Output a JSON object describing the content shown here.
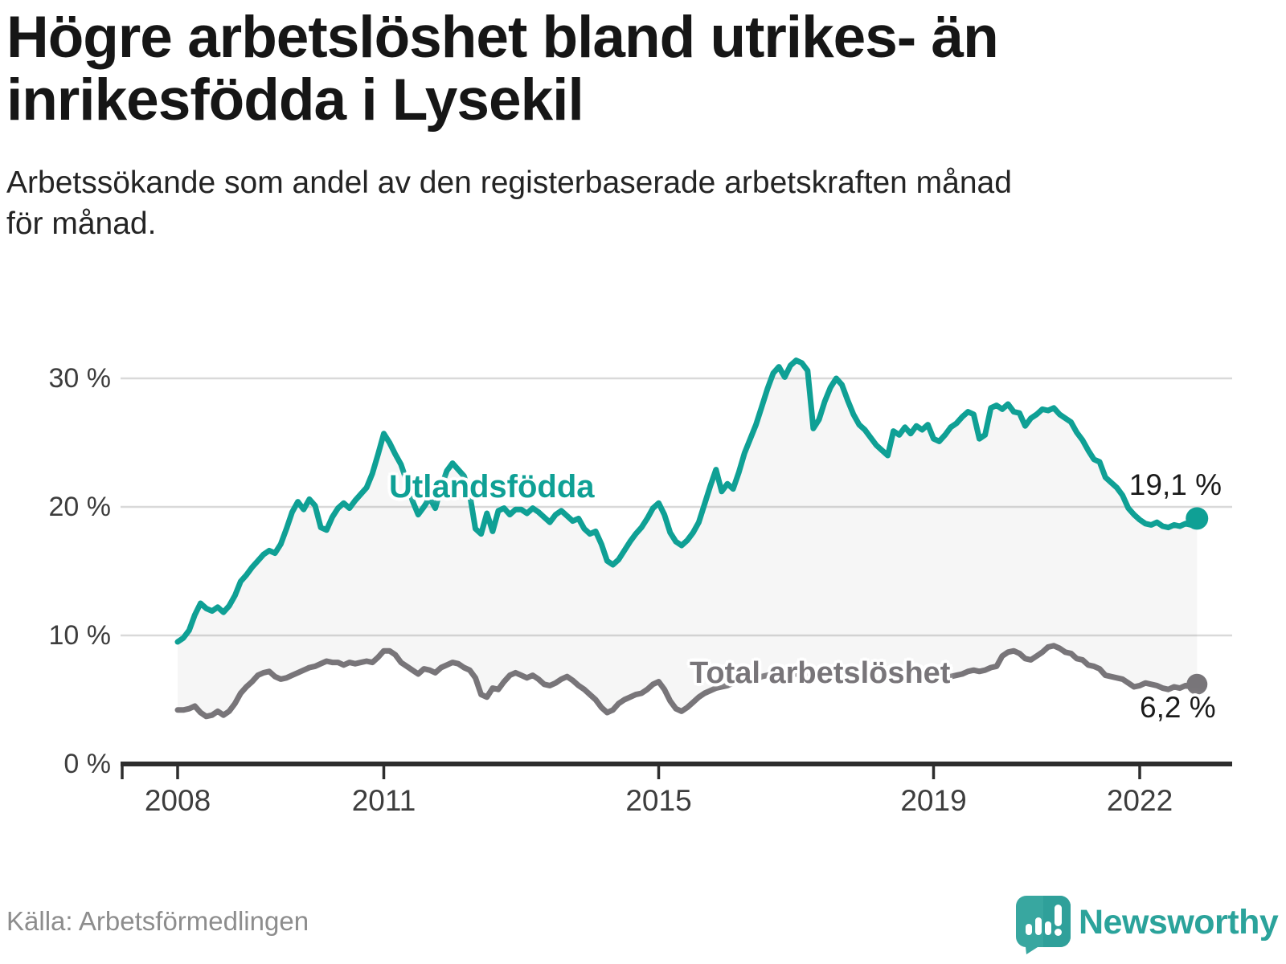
{
  "header": {
    "title_line1": "Högre arbetslöshet bland utrikes- än",
    "title_line2": "inrikesfödda i Lysekil",
    "subtitle_line1": "Arbetssökande som andel av den registerbaserade arbetskraften månad",
    "subtitle_line2": "för månad."
  },
  "chart_data": {
    "type": "line",
    "title": "Högre arbetslöshet bland utrikes- än inrikesfödda i Lysekil",
    "subtitle": "Arbetssökande som andel av den registerbaserade arbetskraften månad för månad.",
    "frequency": "monthly",
    "x_start": "2008-01",
    "x_end": "2022-11",
    "grid": "horizontal",
    "area_fill_between_series": true,
    "ylim": [
      0,
      33
    ],
    "y_ticks": [
      {
        "value": 30,
        "label": "30 %"
      },
      {
        "value": 20,
        "label": "20 %"
      },
      {
        "value": 10,
        "label": "10 %"
      },
      {
        "value": 0,
        "label": "0 %"
      }
    ],
    "x_ticks": [
      {
        "year": 2008,
        "label": "2008"
      },
      {
        "year": 2011,
        "label": "2011"
      },
      {
        "year": 2015,
        "label": "2015"
      },
      {
        "year": 2019,
        "label": "2019"
      },
      {
        "year": 2022,
        "label": "2022"
      }
    ],
    "series": [
      {
        "name": "Utlandsfödda",
        "color": "#0FA095",
        "end_value": 19.1,
        "end_label": "19,1 %",
        "values": [
          9.5,
          9.8,
          10.4,
          11.6,
          12.5,
          12.1,
          11.9,
          12.2,
          11.8,
          12.3,
          13.1,
          14.2,
          14.7,
          15.3,
          15.8,
          16.3,
          16.6,
          16.4,
          17.1,
          18.3,
          19.6,
          20.4,
          19.8,
          20.6,
          20.1,
          18.4,
          18.2,
          19.2,
          19.9,
          20.3,
          19.9,
          20.5,
          21.0,
          21.5,
          22.6,
          24.1,
          25.7,
          25.0,
          24.1,
          23.3,
          22.0,
          20.5,
          19.4,
          20.0,
          20.7,
          19.9,
          21.5,
          22.8,
          23.4,
          22.9,
          22.4,
          21.0,
          18.3,
          17.9,
          19.5,
          18.1,
          19.7,
          19.9,
          19.4,
          19.8,
          19.8,
          19.5,
          19.9,
          19.6,
          19.2,
          18.8,
          19.4,
          19.7,
          19.3,
          18.9,
          19.1,
          18.3,
          17.9,
          18.1,
          17.1,
          15.8,
          15.5,
          15.9,
          16.6,
          17.3,
          17.9,
          18.4,
          19.1,
          19.9,
          20.3,
          19.4,
          18.0,
          17.3,
          17.0,
          17.4,
          18.0,
          18.8,
          20.2,
          21.6,
          22.9,
          21.2,
          21.8,
          21.4,
          22.7,
          24.2,
          25.3,
          26.4,
          27.8,
          29.2,
          30.4,
          30.9,
          30.1,
          31.0,
          31.4,
          31.2,
          30.6,
          26.1,
          26.8,
          28.2,
          29.3,
          30.0,
          29.5,
          28.3,
          27.2,
          26.4,
          26.0,
          25.4,
          24.8,
          24.4,
          24.0,
          25.9,
          25.6,
          26.2,
          25.7,
          26.3,
          26.0,
          26.4,
          25.3,
          25.1,
          25.6,
          26.2,
          26.5,
          27.0,
          27.4,
          27.2,
          25.3,
          25.6,
          27.7,
          27.9,
          27.6,
          28.0,
          27.4,
          27.3,
          26.3,
          26.9,
          27.2,
          27.6,
          27.5,
          27.7,
          27.2,
          26.9,
          26.6,
          25.8,
          25.2,
          24.4,
          23.7,
          23.5,
          22.3,
          21.9,
          21.5,
          20.9,
          19.9,
          19.4,
          19.0,
          18.7,
          18.6,
          18.8,
          18.5,
          18.4,
          18.6,
          18.5,
          18.7,
          18.6,
          19.1
        ]
      },
      {
        "name": "Total arbetslöshet",
        "color": "#787579",
        "end_value": 6.2,
        "end_label": "6,2 %",
        "values": [
          4.2,
          4.2,
          4.3,
          4.5,
          4.0,
          3.7,
          3.8,
          4.1,
          3.8,
          4.1,
          4.7,
          5.5,
          6.0,
          6.4,
          6.9,
          7.1,
          7.2,
          6.8,
          6.6,
          6.7,
          6.9,
          7.1,
          7.3,
          7.5,
          7.6,
          7.8,
          8.0,
          7.9,
          7.9,
          7.7,
          7.9,
          7.8,
          7.9,
          8.0,
          7.9,
          8.3,
          8.8,
          8.8,
          8.5,
          7.9,
          7.6,
          7.3,
          7.0,
          7.4,
          7.3,
          7.1,
          7.5,
          7.7,
          7.9,
          7.8,
          7.5,
          7.3,
          6.7,
          5.4,
          5.2,
          5.9,
          5.8,
          6.4,
          6.9,
          7.1,
          6.9,
          6.7,
          6.9,
          6.6,
          6.2,
          6.1,
          6.3,
          6.6,
          6.8,
          6.5,
          6.1,
          5.8,
          5.4,
          5.0,
          4.4,
          4.0,
          4.2,
          4.7,
          5.0,
          5.2,
          5.4,
          5.5,
          5.8,
          6.2,
          6.4,
          5.8,
          4.9,
          4.3,
          4.1,
          4.4,
          4.8,
          5.2,
          5.5,
          5.7,
          5.9,
          6.0,
          6.1,
          6.3,
          6.5,
          6.6,
          6.5,
          6.6,
          6.8,
          6.9,
          7.0,
          6.9,
          6.9,
          7.0,
          7.0,
          7.1,
          6.9,
          6.6,
          6.7,
          6.9,
          7.1,
          7.2,
          7.0,
          6.9,
          6.8,
          6.7,
          6.4,
          6.6,
          6.5,
          6.7,
          6.5,
          6.6,
          6.7,
          6.5,
          6.6,
          6.7,
          6.6,
          6.8,
          6.6,
          6.5,
          6.6,
          6.8,
          6.9,
          7.0,
          7.2,
          7.3,
          7.2,
          7.3,
          7.5,
          7.6,
          8.4,
          8.7,
          8.8,
          8.6,
          8.2,
          8.1,
          8.4,
          8.7,
          9.1,
          9.2,
          9.0,
          8.7,
          8.6,
          8.2,
          8.1,
          7.7,
          7.6,
          7.4,
          6.9,
          6.8,
          6.7,
          6.6,
          6.3,
          6.0,
          6.1,
          6.3,
          6.2,
          6.1,
          5.9,
          5.8,
          6.0,
          5.9,
          6.1,
          6.0,
          6.2
        ]
      }
    ]
  },
  "footer": {
    "source": "Källa: Arbetsförmedlingen",
    "brand": "Newsworthy"
  },
  "colors": {
    "accent_teal": "#0FA095",
    "series_gray": "#787579",
    "area_fill": "rgba(90,90,90,0.055)",
    "gridline": "#D9D9D9",
    "axis": "#2D2D2D",
    "text_dark": "#161616",
    "text_muted": "#8D8D8D",
    "logo_teal": "#38A7A0",
    "logo_teal_dark": "#2B948E",
    "brand_text": "#2BA39B"
  }
}
